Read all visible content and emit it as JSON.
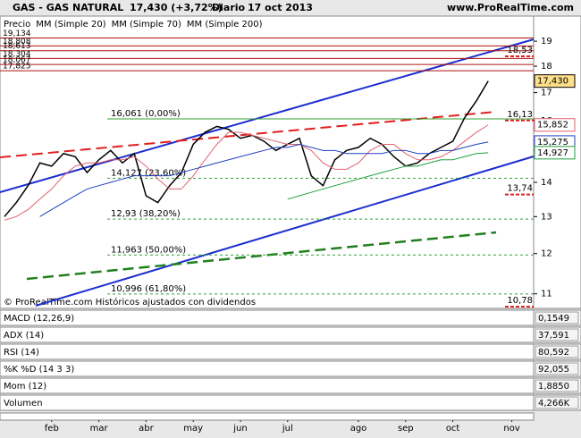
{
  "chart_data": {
    "type": "line",
    "title": "GAS - GAS NATURAL",
    "quote": "17,430 (+3,72%)",
    "period": "Diario",
    "date": "17 oct 2013",
    "site": "www.ProRealTime.com",
    "note": "© ProRealTime.com Históricos ajustados con dividendos",
    "log_scale": true,
    "ylim": [
      10.7,
      19.6
    ],
    "yticks": [
      11,
      12,
      13,
      14,
      15,
      16,
      17,
      18,
      19
    ],
    "categories": [
      null,
      null,
      null,
      null,
      "feb",
      null,
      null,
      null,
      "mar",
      null,
      null,
      null,
      "abr",
      null,
      null,
      null,
      "may",
      null,
      null,
      null,
      "jun",
      null,
      null,
      null,
      "jul",
      null,
      null,
      null,
      null,
      null,
      "ago",
      null,
      null,
      null,
      "sep",
      null,
      null,
      null,
      "oct",
      null,
      null,
      null,
      null,
      "nov"
    ],
    "series": [
      {
        "name": "Precio",
        "color": "#000000",
        "last": {
          "value": 17.43,
          "label": "17,430"
        },
        "values": [
          13.0,
          13.4,
          13.9,
          14.6,
          14.5,
          14.9,
          14.8,
          14.3,
          14.7,
          15.0,
          14.6,
          14.9,
          13.6,
          13.4,
          13.9,
          14.3,
          15.2,
          15.6,
          15.8,
          15.7,
          15.4,
          15.5,
          15.3,
          15.0,
          15.2,
          15.4,
          14.2,
          13.9,
          14.7,
          15.0,
          15.1,
          15.4,
          15.2,
          14.8,
          14.5,
          14.6,
          14.9,
          15.1,
          15.3,
          16.1,
          16.7,
          17.43,
          null,
          null
        ]
      },
      {
        "name": "MM (Simple 20)",
        "color": "#e06070",
        "last": {
          "value": 15.852,
          "label": "15,852"
        },
        "values": [
          12.9,
          13.0,
          13.2,
          13.5,
          13.8,
          14.2,
          14.5,
          14.6,
          14.6,
          14.7,
          14.7,
          14.8,
          14.5,
          14.1,
          13.8,
          13.8,
          14.2,
          14.7,
          15.2,
          15.6,
          15.6,
          15.5,
          15.4,
          15.3,
          15.2,
          15.2,
          15.0,
          14.6,
          14.4,
          14.4,
          14.6,
          15.0,
          15.2,
          15.2,
          14.9,
          14.7,
          14.7,
          14.8,
          15.0,
          15.3,
          15.6,
          15.852,
          null,
          null
        ]
      },
      {
        "name": "MM (Simple 70)",
        "color": "#2040c0",
        "last": {
          "value": 15.275,
          "label": "15,275"
        },
        "values": [
          null,
          null,
          null,
          13.0,
          13.2,
          13.4,
          13.6,
          13.8,
          13.9,
          14.0,
          14.1,
          14.2,
          14.2,
          14.2,
          14.2,
          14.3,
          14.4,
          14.5,
          14.6,
          14.7,
          14.8,
          14.9,
          15.0,
          15.1,
          15.1,
          15.2,
          15.1,
          15.0,
          15.0,
          14.9,
          14.9,
          14.9,
          14.9,
          15.0,
          15.0,
          14.9,
          14.9,
          15.0,
          15.0,
          15.1,
          15.2,
          15.275,
          null,
          null
        ]
      },
      {
        "name": "MM (Simple 200)",
        "color": "#20a040",
        "last": {
          "value": 14.927,
          "label": "14,927"
        },
        "values": [
          null,
          null,
          null,
          null,
          null,
          null,
          null,
          null,
          null,
          null,
          null,
          null,
          null,
          null,
          null,
          null,
          null,
          null,
          null,
          null,
          null,
          null,
          null,
          null,
          13.5,
          13.6,
          13.7,
          13.8,
          13.9,
          14.0,
          14.1,
          14.2,
          14.3,
          14.4,
          14.5,
          14.5,
          14.6,
          14.7,
          14.7,
          14.8,
          14.9,
          14.927,
          null,
          null
        ]
      }
    ],
    "resistance_levels": [
      {
        "value": 19.134,
        "label": "19,134"
      },
      {
        "value": 18.808,
        "label": "18,808"
      },
      {
        "value": 18.613,
        "label": "18,613"
      },
      {
        "value": 18.304,
        "label": "18,304"
      },
      {
        "value": 18.067,
        "label": "18,067"
      },
      {
        "value": 17.825,
        "label": "17,825"
      }
    ],
    "fibonacci_levels": [
      {
        "value": 16.061,
        "label": "16,061 (0,00%)"
      },
      {
        "value": 14.127,
        "label": "14,127 (23,60%)"
      },
      {
        "value": 12.93,
        "label": "12,93 (38,20%)"
      },
      {
        "value": 11.963,
        "label": "11,963 (50,00%)"
      },
      {
        "value": 10.996,
        "label": "10,996 (61,80%)"
      }
    ],
    "marker_levels": [
      {
        "value": 18.53,
        "label": "18,53"
      },
      {
        "value": 16.13,
        "label": "16,13"
      },
      {
        "value": 13.74,
        "label": "13,74"
      },
      {
        "value": 10.78,
        "label": "10,78"
      }
    ],
    "indicators": [
      {
        "name": "MACD (12,26,9)",
        "last": {
          "value": 0.1549,
          "label": "0,1549"
        }
      },
      {
        "name": "ADX (14)",
        "last": {
          "value": 37.591,
          "label": "37,591"
        }
      },
      {
        "name": "RSI (14)",
        "last": {
          "value": 80.592,
          "label": "80,592"
        }
      },
      {
        "name": "%K %D (14 3 3)",
        "last": {
          "value": 92.055,
          "label": "92,055"
        }
      },
      {
        "name": "Mom (12)",
        "last": {
          "value": 1.885,
          "label": "1,8850"
        }
      },
      {
        "name": "Volumen",
        "last": {
          "value": 4266,
          "label": "4,266K"
        }
      }
    ]
  }
}
